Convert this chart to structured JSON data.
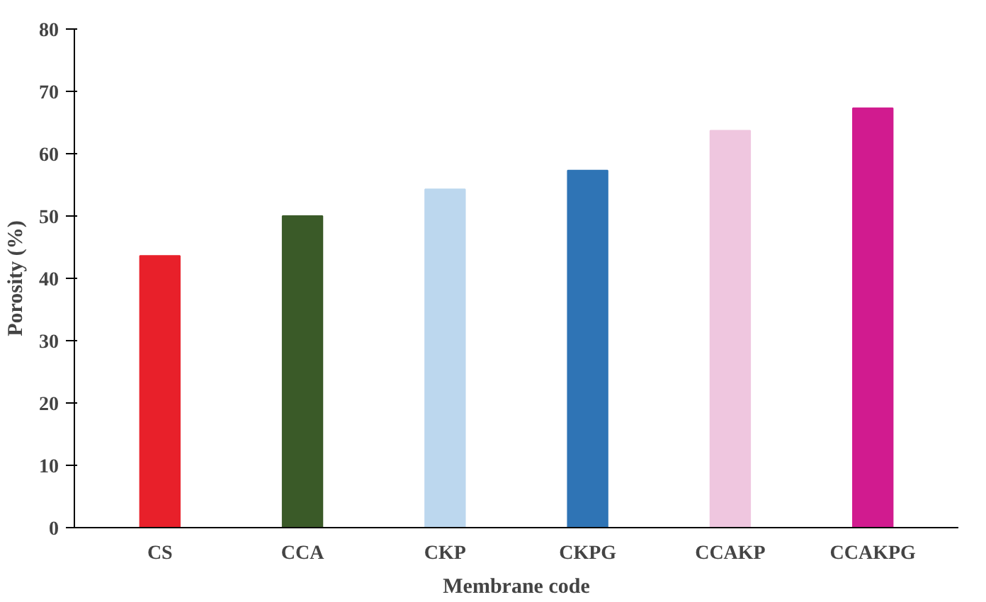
{
  "chart_data": {
    "type": "bar",
    "xlabel": "Membrane code",
    "ylabel": "Porosity (%)",
    "categories": [
      "CS",
      "CCA",
      "CKP",
      "CKPG",
      "CCAKP",
      "CCAKPG"
    ],
    "values": [
      43.6,
      50,
      54.3,
      57.3,
      63.7,
      67.3
    ],
    "colors": [
      "#e8202a",
      "#3a5a28",
      "#bcd7ee",
      "#2f74b5",
      "#efc6df",
      "#d11b8f"
    ],
    "ylim": [
      0,
      80
    ],
    "yticks": [
      0,
      10,
      20,
      30,
      40,
      50,
      60,
      70,
      80
    ],
    "grid": false
  }
}
